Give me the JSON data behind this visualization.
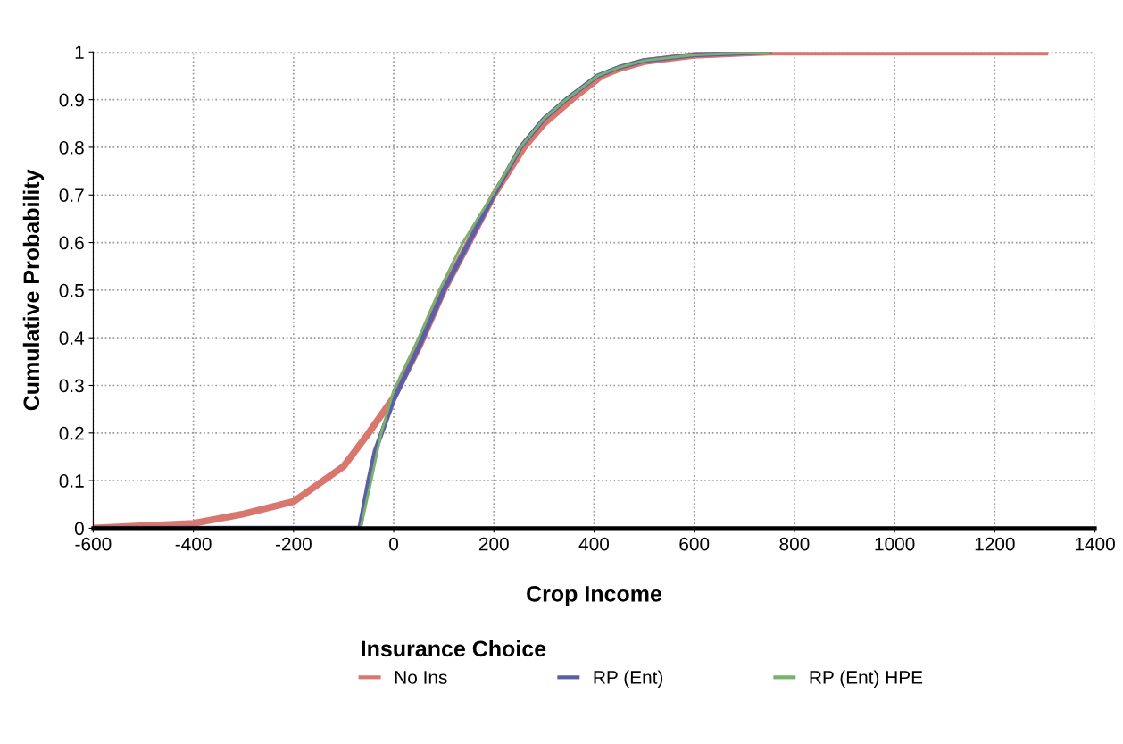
{
  "chart_data": {
    "type": "line",
    "xlabel": "Crop Income",
    "ylabel": "Cumulative Probability",
    "legend_title": "Insurance Choice",
    "xlim": [
      -600,
      1400
    ],
    "xticks": [
      -600,
      -400,
      -200,
      0,
      200,
      400,
      600,
      800,
      1000,
      1200,
      1400
    ],
    "ylim": [
      0,
      1
    ],
    "yticks": [
      0,
      0.1,
      0.2,
      0.3,
      0.4,
      0.5,
      0.6,
      0.7,
      0.8,
      0.9,
      1
    ],
    "grid": true,
    "legend": "bottom",
    "marker": "none",
    "line_style": "solid",
    "series": [
      {
        "name": "No Ins",
        "color": "#d9776f",
        "x": [
          -600,
          -400,
          -300,
          -200,
          -100,
          -50,
          0,
          50,
          100,
          150,
          200,
          260,
          300,
          355,
          415,
          450,
          500,
          600,
          700,
          750,
          1300
        ],
        "values": [
          0,
          0.01,
          0.03,
          0.056,
          0.13,
          0.2,
          0.275,
          0.38,
          0.5,
          0.6,
          0.7,
          0.8,
          0.85,
          0.9,
          0.95,
          0.965,
          0.98,
          0.993,
          0.998,
          1,
          1
        ]
      },
      {
        "name": "RP (Ent)",
        "color": "#5b5fa8",
        "x": [
          -600,
          -68,
          -50,
          -37,
          0,
          50,
          100,
          150,
          200,
          253,
          300,
          344,
          407,
          450,
          500,
          600,
          700,
          750
        ],
        "values": [
          0,
          0,
          0.1,
          0.163,
          0.27,
          0.38,
          0.5,
          0.6,
          0.7,
          0.8,
          0.86,
          0.9,
          0.95,
          0.968,
          0.982,
          0.994,
          0.998,
          1
        ]
      },
      {
        "name": "RP (Ent) HPE",
        "color": "#79b26b",
        "x": [
          -600,
          -66,
          -45,
          -25,
          0,
          50,
          91,
          138,
          200,
          253,
          300,
          344,
          407,
          450,
          500,
          600,
          700,
          750
        ],
        "values": [
          0,
          0,
          0.1,
          0.2,
          0.29,
          0.4,
          0.5,
          0.6,
          0.705,
          0.8,
          0.86,
          0.9,
          0.95,
          0.968,
          0.982,
          0.994,
          0.998,
          1
        ]
      }
    ]
  }
}
